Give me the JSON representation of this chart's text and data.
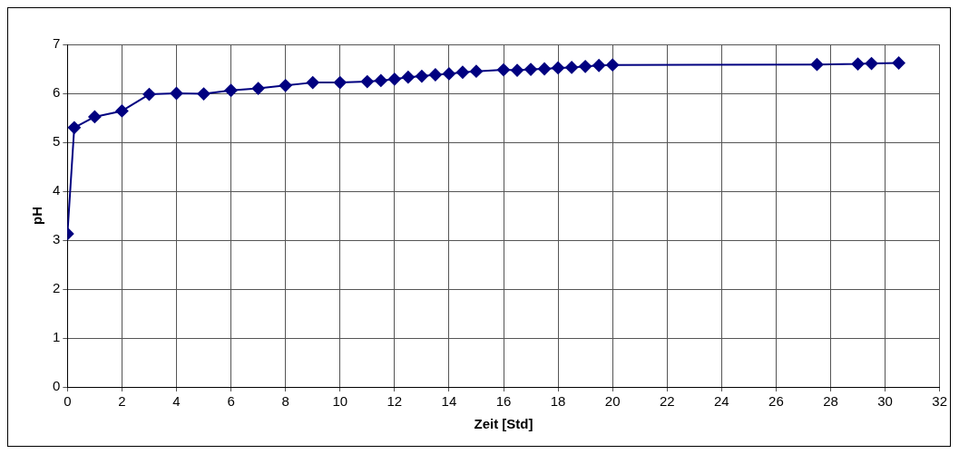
{
  "chart_data": {
    "type": "line",
    "xlabel": "Zeit [Std]",
    "ylabel": "pH",
    "x": [
      0,
      0.25,
      1,
      2,
      3,
      4,
      5,
      6,
      7,
      8,
      9,
      10,
      11,
      11.5,
      12,
      12.5,
      13,
      13.5,
      14,
      14.5,
      15,
      16,
      16.5,
      17,
      17.5,
      18,
      18.5,
      19,
      19.5,
      20,
      27.5,
      29,
      29.5,
      30.5
    ],
    "series": [
      {
        "color": "#000080",
        "values": [
          3.13,
          5.3,
          5.52,
          5.64,
          5.98,
          6.0,
          5.99,
          6.06,
          6.1,
          6.16,
          6.22,
          6.22,
          6.24,
          6.26,
          6.29,
          6.33,
          6.35,
          6.38,
          6.4,
          6.43,
          6.45,
          6.48,
          6.47,
          6.49,
          6.5,
          6.52,
          6.53,
          6.55,
          6.57,
          6.58,
          6.59,
          6.6,
          6.61,
          6.62
        ]
      }
    ],
    "xlim": [
      0,
      32
    ],
    "xticks": [
      0,
      2,
      4,
      6,
      8,
      10,
      12,
      14,
      16,
      18,
      20,
      22,
      24,
      26,
      28,
      30,
      32
    ],
    "ylim": [
      0,
      7
    ],
    "yticks": [
      0,
      1,
      2,
      3,
      4,
      5,
      6,
      7
    ],
    "grid": true,
    "legend": false,
    "marker": "diamond",
    "line_style": "solid"
  }
}
